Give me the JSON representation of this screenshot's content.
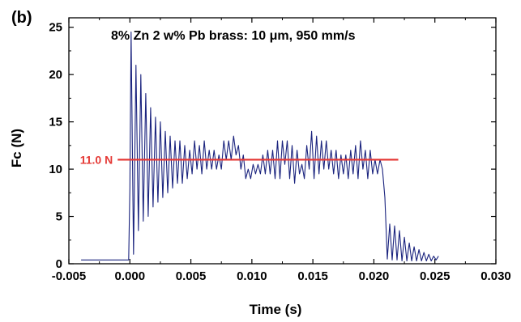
{
  "chart_data": {
    "type": "line",
    "panel_label": "(b)",
    "title": "8% Zn 2 w% Pb brass: 10 μm, 950 mm/s",
    "xlabel": "Time (s)",
    "ylabel": "Fc (N)",
    "xlim": [
      -0.005,
      0.03
    ],
    "ylim": [
      0,
      26
    ],
    "xticks": [
      -0.005,
      0.0,
      0.005,
      0.01,
      0.015,
      0.02,
      0.025,
      0.03
    ],
    "xtick_labels": [
      "-0.005",
      "0.000",
      "0.005",
      "0.010",
      "0.015",
      "0.020",
      "0.025",
      "0.030"
    ],
    "yticks": [
      0,
      5,
      10,
      15,
      20,
      25
    ],
    "ytick_labels": [
      "0",
      "5",
      "10",
      "15",
      "20",
      "25"
    ],
    "grid": false,
    "series": [
      {
        "color": "#1a237e",
        "x": [
          -0.004,
          -0.003,
          -0.002,
          -0.001,
          -0.0001,
          0.0,
          0.0001,
          0.0003,
          0.0005,
          0.0007,
          0.0009,
          0.0011,
          0.0013,
          0.0015,
          0.0017,
          0.0019,
          0.0021,
          0.0023,
          0.0025,
          0.0027,
          0.0029,
          0.0031,
          0.0033,
          0.0035,
          0.0037,
          0.0039,
          0.0041,
          0.0043,
          0.0045,
          0.0047,
          0.0049,
          0.0051,
          0.0053,
          0.0055,
          0.0057,
          0.0059,
          0.0061,
          0.0063,
          0.0065,
          0.0067,
          0.0069,
          0.0071,
          0.0073,
          0.0075,
          0.0077,
          0.0079,
          0.0081,
          0.0083,
          0.0085,
          0.0087,
          0.0089,
          0.0091,
          0.0093,
          0.0095,
          0.0097,
          0.0099,
          0.0101,
          0.0103,
          0.0105,
          0.0107,
          0.0109,
          0.0111,
          0.0113,
          0.0115,
          0.0117,
          0.0119,
          0.0121,
          0.0123,
          0.0125,
          0.0127,
          0.0129,
          0.0131,
          0.0133,
          0.0135,
          0.0137,
          0.0139,
          0.0141,
          0.0143,
          0.0145,
          0.0147,
          0.0149,
          0.0151,
          0.0153,
          0.0155,
          0.0157,
          0.0159,
          0.0161,
          0.0163,
          0.0165,
          0.0167,
          0.0169,
          0.0171,
          0.0173,
          0.0175,
          0.0177,
          0.0179,
          0.0181,
          0.0183,
          0.0185,
          0.0187,
          0.0189,
          0.0191,
          0.0193,
          0.0195,
          0.0197,
          0.0199,
          0.0201,
          0.0203,
          0.0205,
          0.0207,
          0.0209,
          0.0211,
          0.0213,
          0.0215,
          0.0217,
          0.0219,
          0.0221,
          0.0223,
          0.0225,
          0.0227,
          0.0229,
          0.0231,
          0.0233,
          0.0235,
          0.0237,
          0.0239,
          0.0241,
          0.0243,
          0.0245,
          0.0247,
          0.0249,
          0.0251,
          0.0253
        ],
        "y": [
          0.4,
          0.4,
          0.4,
          0.4,
          0.4,
          8.0,
          24.5,
          1.0,
          21.0,
          3.5,
          20.0,
          4.5,
          18.0,
          5.0,
          16.5,
          6.0,
          15.5,
          6.5,
          15.0,
          7.0,
          14.0,
          7.5,
          13.5,
          8.0,
          13.0,
          8.5,
          13.0,
          8.5,
          12.5,
          9.0,
          12.0,
          9.5,
          13.0,
          10.0,
          12.5,
          9.5,
          13.0,
          10.0,
          12.0,
          10.0,
          12.0,
          10.0,
          11.5,
          10.0,
          13.0,
          11.0,
          13.0,
          11.0,
          13.5,
          11.5,
          12.5,
          10.0,
          11.5,
          9.0,
          10.0,
          9.0,
          10.5,
          9.5,
          10.5,
          9.5,
          11.5,
          9.5,
          12.0,
          9.5,
          12.0,
          9.0,
          13.0,
          9.0,
          13.0,
          10.5,
          13.0,
          9.0,
          12.5,
          8.5,
          12.0,
          9.5,
          10.5,
          9.0,
          12.5,
          10.0,
          14.0,
          9.0,
          13.5,
          9.5,
          13.0,
          10.0,
          13.0,
          10.0,
          12.0,
          9.5,
          12.0,
          9.0,
          11.5,
          9.5,
          11.5,
          9.0,
          12.0,
          9.5,
          12.5,
          9.0,
          13.0,
          10.0,
          12.0,
          9.0,
          12.0,
          9.5,
          11.0,
          9.5,
          11.0,
          10.0,
          7.0,
          0.5,
          4.2,
          0.4,
          4.0,
          0.4,
          3.5,
          0.3,
          2.8,
          0.3,
          2.2,
          0.3,
          1.8,
          0.3,
          1.5,
          0.3,
          1.2,
          0.3,
          1.0,
          0.3,
          0.8,
          0.4,
          0.8
        ]
      }
    ],
    "reference_line": {
      "y": 11.0,
      "x_range": [
        -0.001,
        0.022
      ],
      "label": "11.0 N",
      "color": "#e53935"
    }
  }
}
